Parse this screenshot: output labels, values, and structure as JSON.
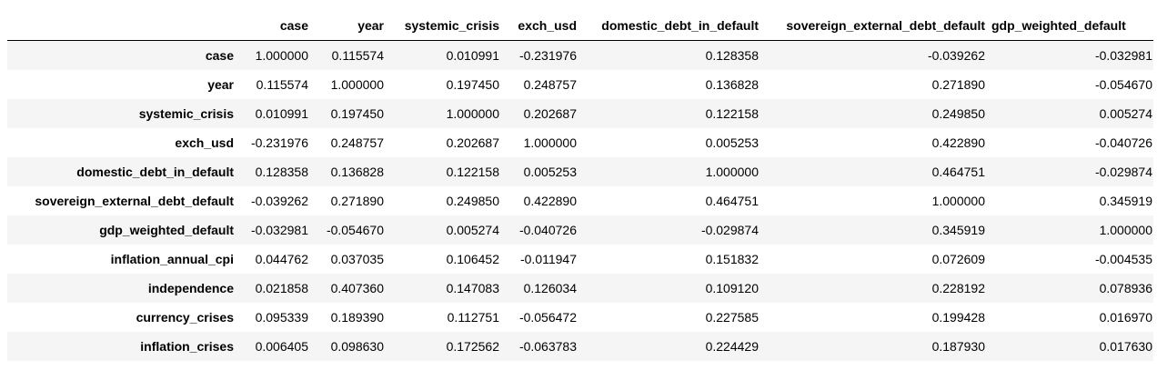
{
  "table": {
    "columns": [
      "case",
      "year",
      "systemic_crisis",
      "exch_usd",
      "domestic_debt_in_default",
      "sovereign_external_debt_default",
      "gdp_weighted_default"
    ],
    "rows": [
      {
        "label": "case",
        "values": [
          "1.000000",
          "0.115574",
          "0.010991",
          "-0.231976",
          "0.128358",
          "-0.039262",
          "-0.032981"
        ]
      },
      {
        "label": "year",
        "values": [
          "0.115574",
          "1.000000",
          "0.197450",
          "0.248757",
          "0.136828",
          "0.271890",
          "-0.054670"
        ]
      },
      {
        "label": "systemic_crisis",
        "values": [
          "0.010991",
          "0.197450",
          "1.000000",
          "0.202687",
          "0.122158",
          "0.249850",
          "0.005274"
        ]
      },
      {
        "label": "exch_usd",
        "values": [
          "-0.231976",
          "0.248757",
          "0.202687",
          "1.000000",
          "0.005253",
          "0.422890",
          "-0.040726"
        ]
      },
      {
        "label": "domestic_debt_in_default",
        "values": [
          "0.128358",
          "0.136828",
          "0.122158",
          "0.005253",
          "1.000000",
          "0.464751",
          "-0.029874"
        ]
      },
      {
        "label": "sovereign_external_debt_default",
        "values": [
          "-0.039262",
          "0.271890",
          "0.249850",
          "0.422890",
          "0.464751",
          "1.000000",
          "0.345919"
        ]
      },
      {
        "label": "gdp_weighted_default",
        "values": [
          "-0.032981",
          "-0.054670",
          "0.005274",
          "-0.040726",
          "-0.029874",
          "0.345919",
          "1.000000"
        ]
      },
      {
        "label": "inflation_annual_cpi",
        "values": [
          "0.044762",
          "0.037035",
          "0.106452",
          "-0.011947",
          "0.151832",
          "0.072609",
          "-0.004535"
        ]
      },
      {
        "label": "independence",
        "values": [
          "0.021858",
          "0.407360",
          "0.147083",
          "0.126034",
          "0.109120",
          "0.228192",
          "0.078936"
        ]
      },
      {
        "label": "currency_crises",
        "values": [
          "0.095339",
          "0.189390",
          "0.112751",
          "-0.056472",
          "0.227585",
          "0.199428",
          "0.016970"
        ]
      },
      {
        "label": "inflation_crises",
        "values": [
          "0.006405",
          "0.098630",
          "0.172562",
          "-0.063783",
          "0.224429",
          "0.187930",
          "0.017630"
        ]
      }
    ]
  }
}
